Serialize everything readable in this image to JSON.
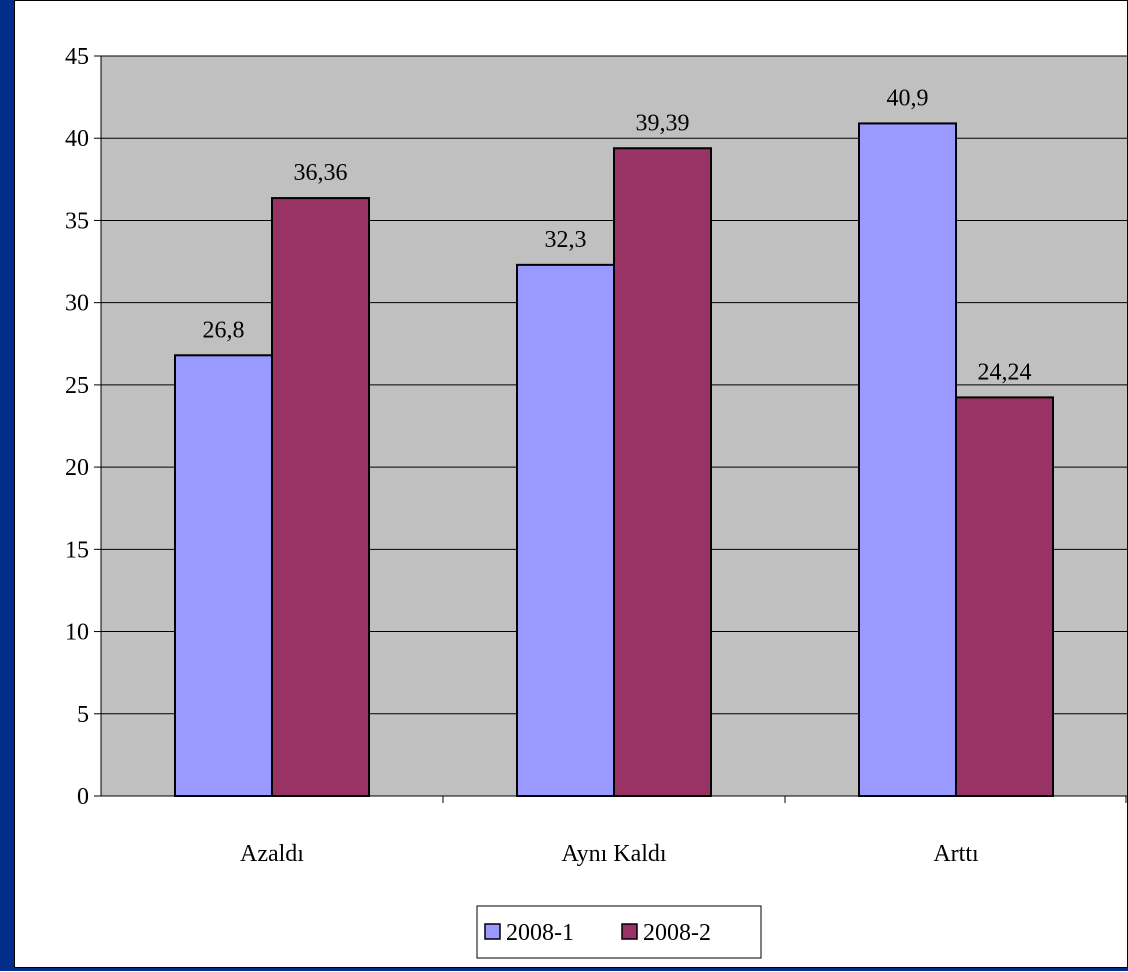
{
  "colors": {
    "frame": "#002e8a",
    "plot_bg": "#c0c0c0",
    "series_1": "#9999ff",
    "series_2": "#993366"
  },
  "chart_data": {
    "type": "bar",
    "title": "",
    "xlabel": "",
    "ylabel": "",
    "categories": [
      "Azaldı",
      "Aynı Kaldı",
      "Arttı"
    ],
    "series": [
      {
        "name": "2008-1",
        "values": [
          26.8,
          32.3,
          40.9
        ],
        "labels": [
          "26,8",
          "32,3",
          "40,9"
        ]
      },
      {
        "name": "2008-2",
        "values": [
          36.36,
          39.39,
          24.24
        ],
        "labels": [
          "36,36",
          "39,39",
          "24,24"
        ]
      }
    ],
    "ylim": [
      0,
      45
    ],
    "yticks": [
      "0",
      "5",
      "10",
      "15",
      "20",
      "25",
      "30",
      "35",
      "40",
      "45"
    ],
    "grid": true,
    "legend_position": "bottom"
  }
}
